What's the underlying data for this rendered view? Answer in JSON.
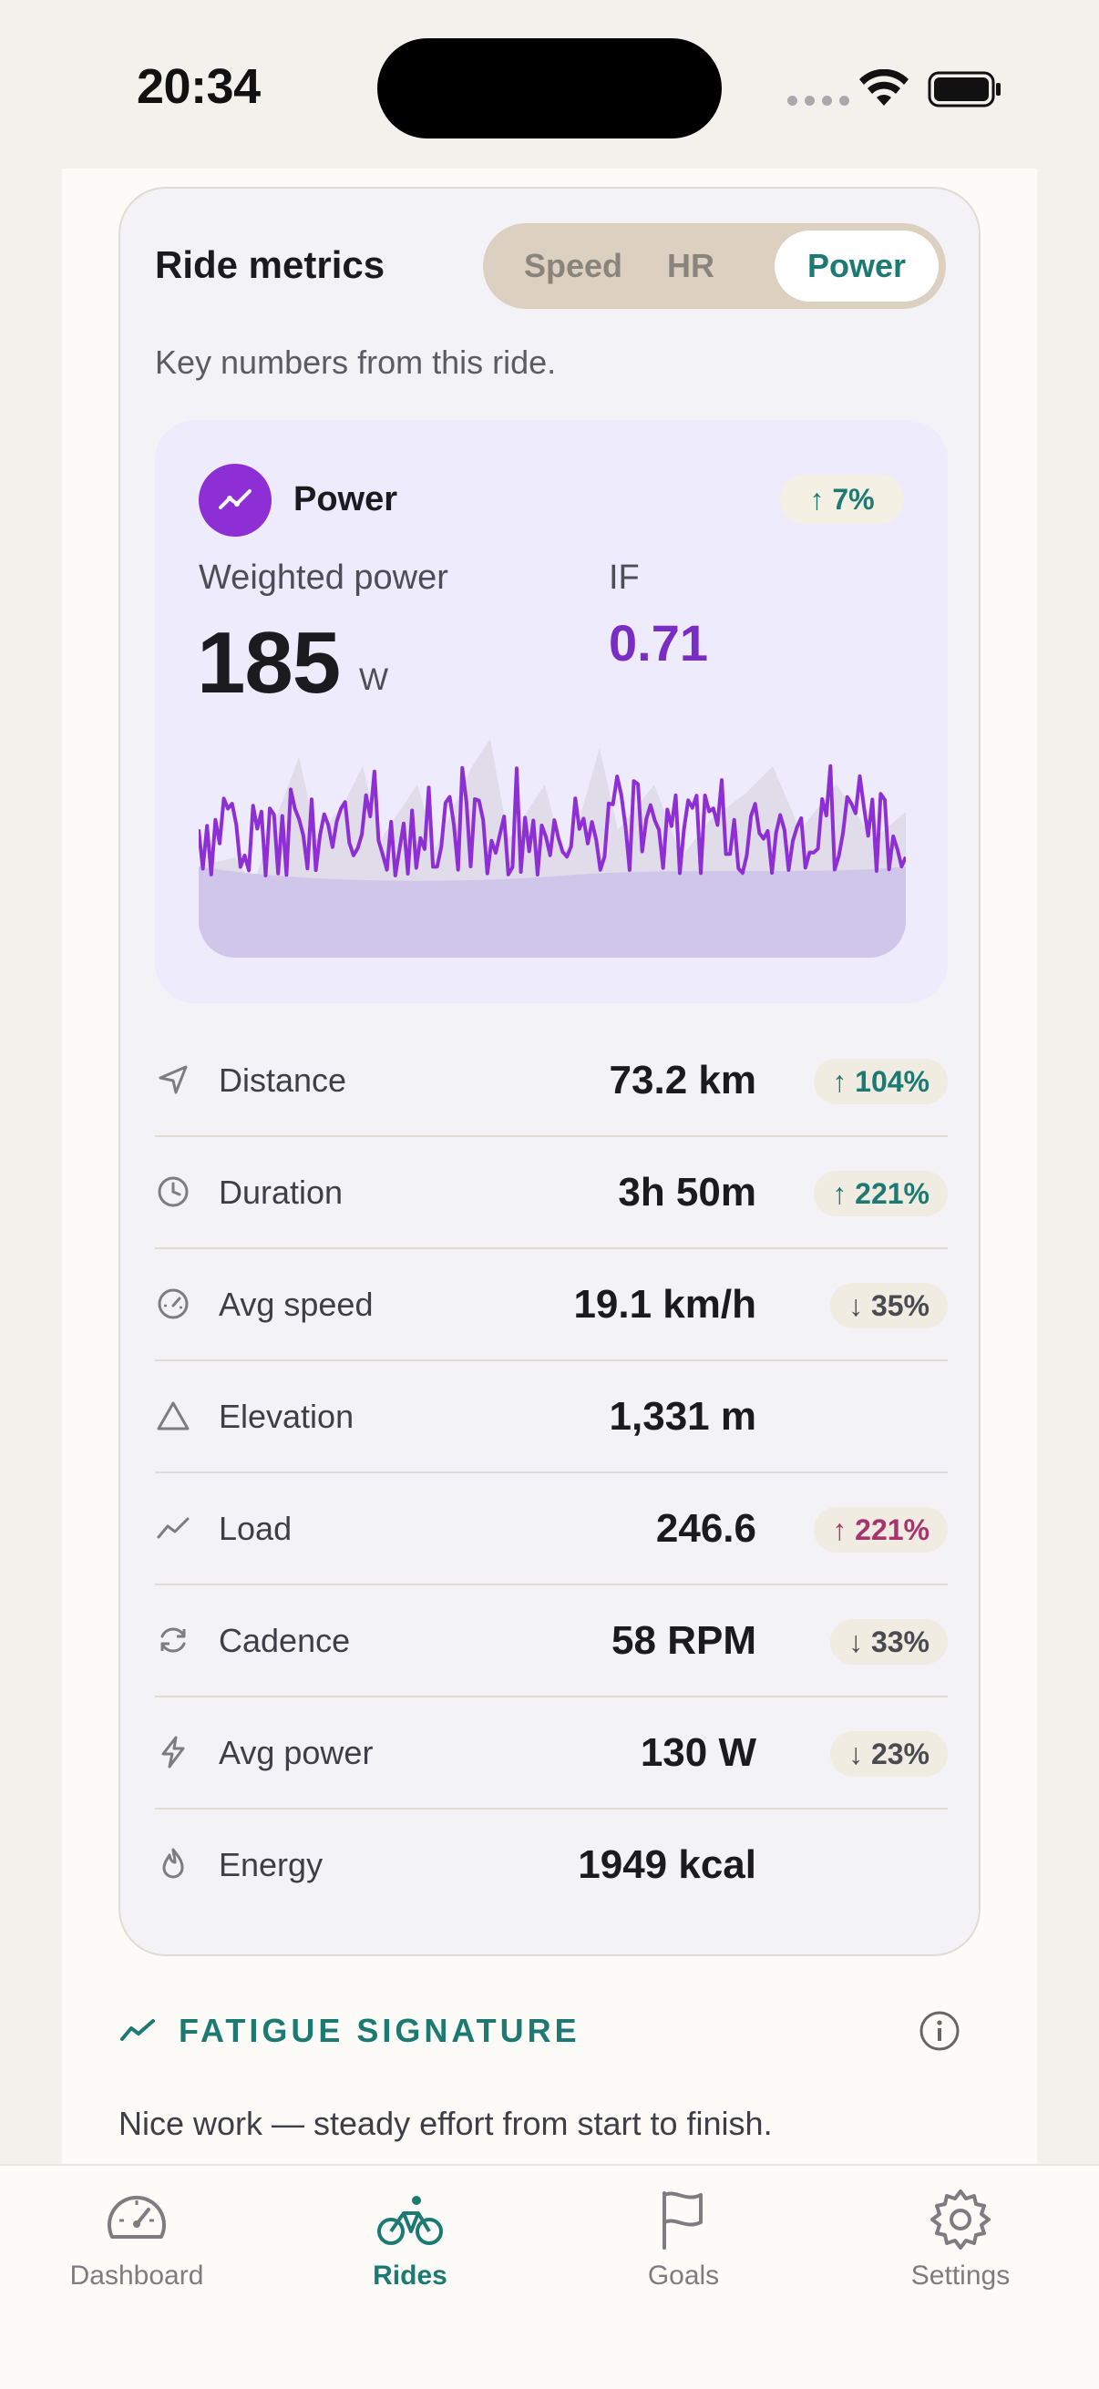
{
  "status_bar": {
    "time": "20:34"
  },
  "card": {
    "title": "Ride metrics",
    "subtitle": "Key numbers from this ride.",
    "segments": [
      {
        "label": "Speed",
        "selected": false
      },
      {
        "label": "HR",
        "selected": false
      },
      {
        "label": "Power",
        "selected": true
      }
    ]
  },
  "power_panel": {
    "icon": "trend-line-icon",
    "name": "Power",
    "trend": "↑ 7%",
    "weighted_label": "Weighted power",
    "weighted_value": "185",
    "weighted_unit": "W",
    "if_label": "IF",
    "if_value": "0.71",
    "accent_color": "#8e2fd6"
  },
  "metrics": [
    {
      "icon": "navigation-arrow-icon",
      "label": "Distance",
      "value": "73.2 km",
      "delta": "↑ 104%",
      "tone": "up"
    },
    {
      "icon": "clock-icon",
      "label": "Duration",
      "value": "3h 50m",
      "delta": "↑ 221%",
      "tone": "up"
    },
    {
      "icon": "speedometer-icon",
      "label": "Avg speed",
      "value": "19.1 km/h",
      "delta": "↓ 35%",
      "tone": "down"
    },
    {
      "icon": "mountain-triangle-icon",
      "label": "Elevation",
      "value": "1,331 m",
      "delta": "",
      "tone": "none"
    },
    {
      "icon": "trend-line-icon",
      "label": "Load",
      "value": "246.6",
      "delta": "↑ 221%",
      "tone": "warn"
    },
    {
      "icon": "refresh-cycle-icon",
      "label": "Cadence",
      "value": "58 RPM",
      "delta": "↓ 33%",
      "tone": "down"
    },
    {
      "icon": "lightning-bolt-icon",
      "label": "Avg power",
      "value": "130 W",
      "delta": "↓ 23%",
      "tone": "down"
    },
    {
      "icon": "flame-icon",
      "label": "Energy",
      "value": "1949 kcal",
      "delta": "",
      "tone": "none"
    }
  ],
  "fatigue": {
    "title": "FATIGUE SIGNATURE",
    "text": "Nice work — steady effort from start to finish."
  },
  "tabbar": {
    "items": [
      {
        "icon": "gauge-icon",
        "label": "Dashboard",
        "active": false
      },
      {
        "icon": "bicycle-icon",
        "label": "Rides",
        "active": true
      },
      {
        "icon": "flag-icon",
        "label": "Goals",
        "active": false
      },
      {
        "icon": "gear-icon",
        "label": "Settings",
        "active": false
      }
    ]
  },
  "colors": {
    "accent": "#1c7a72",
    "power": "#8e2fd6",
    "warn": "#a8336d"
  }
}
